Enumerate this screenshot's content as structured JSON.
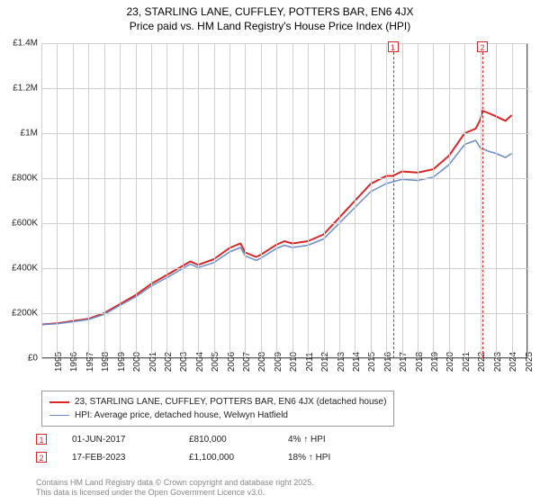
{
  "title_line1": "23, STARLING LANE, CUFFLEY, POTTERS BAR, EN6 4JX",
  "title_line2": "Price paid vs. HM Land Registry's House Price Index (HPI)",
  "chart": {
    "type": "line",
    "background_color": "#ffffff",
    "grid_color": "#cfcfcf",
    "border_color": "#5a5a5a",
    "xlim": [
      1995,
      2026
    ],
    "ylim": [
      0,
      1400000
    ],
    "ytick_step": 200000,
    "ytick_labels": [
      "£0",
      "£200K",
      "£400K",
      "£600K",
      "£800K",
      "£1M",
      "£1.2M",
      "£1.4M"
    ],
    "xtick_step": 1,
    "xtick_labels": [
      "1995",
      "1996",
      "1997",
      "1998",
      "1999",
      "2000",
      "2001",
      "2002",
      "2003",
      "2004",
      "2005",
      "2006",
      "2007",
      "2008",
      "2009",
      "2010",
      "2011",
      "2012",
      "2013",
      "2014",
      "2015",
      "2016",
      "2017",
      "2018",
      "2019",
      "2020",
      "2021",
      "2022",
      "2023",
      "2024",
      "2025",
      "2026"
    ],
    "series": [
      {
        "name": "23, STARLING LANE, CUFFLEY, POTTERS BAR, EN6 4JX (detached house)",
        "color": "#d62728",
        "line_width": 2,
        "points": [
          [
            1995,
            150000
          ],
          [
            1996,
            155000
          ],
          [
            1997,
            165000
          ],
          [
            1998,
            175000
          ],
          [
            1999,
            200000
          ],
          [
            2000,
            240000
          ],
          [
            2001,
            280000
          ],
          [
            2002,
            330000
          ],
          [
            2003,
            370000
          ],
          [
            2004,
            410000
          ],
          [
            2004.5,
            430000
          ],
          [
            2005,
            415000
          ],
          [
            2006,
            440000
          ],
          [
            2007,
            490000
          ],
          [
            2007.7,
            510000
          ],
          [
            2008,
            470000
          ],
          [
            2008.7,
            450000
          ],
          [
            2009,
            460000
          ],
          [
            2010,
            505000
          ],
          [
            2010.5,
            520000
          ],
          [
            2011,
            510000
          ],
          [
            2012,
            520000
          ],
          [
            2013,
            550000
          ],
          [
            2014,
            625000
          ],
          [
            2015,
            700000
          ],
          [
            2016,
            775000
          ],
          [
            2017,
            810000
          ],
          [
            2017.4,
            810000
          ],
          [
            2018,
            830000
          ],
          [
            2019,
            825000
          ],
          [
            2020,
            840000
          ],
          [
            2021,
            900000
          ],
          [
            2022,
            1000000
          ],
          [
            2022.7,
            1020000
          ],
          [
            2023,
            1060000
          ],
          [
            2023.13,
            1100000
          ],
          [
            2023.5,
            1090000
          ],
          [
            2024,
            1075000
          ],
          [
            2024.6,
            1055000
          ],
          [
            2025,
            1080000
          ]
        ]
      },
      {
        "name": "HPI: Average price, detached house, Welwyn Hatfield",
        "color": "#6b8cc4",
        "line_width": 1.5,
        "points": [
          [
            1995,
            150000
          ],
          [
            1996,
            153000
          ],
          [
            1997,
            162000
          ],
          [
            1998,
            172000
          ],
          [
            1999,
            195000
          ],
          [
            2000,
            235000
          ],
          [
            2001,
            272000
          ],
          [
            2002,
            320000
          ],
          [
            2003,
            358000
          ],
          [
            2004,
            398000
          ],
          [
            2004.5,
            418000
          ],
          [
            2005,
            403000
          ],
          [
            2006,
            425000
          ],
          [
            2007,
            472000
          ],
          [
            2007.7,
            492000
          ],
          [
            2008,
            455000
          ],
          [
            2008.7,
            435000
          ],
          [
            2009,
            445000
          ],
          [
            2010,
            488000
          ],
          [
            2010.5,
            502000
          ],
          [
            2011,
            492000
          ],
          [
            2012,
            502000
          ],
          [
            2013,
            530000
          ],
          [
            2014,
            600000
          ],
          [
            2015,
            670000
          ],
          [
            2016,
            740000
          ],
          [
            2017,
            776000
          ],
          [
            2018,
            795000
          ],
          [
            2019,
            790000
          ],
          [
            2020,
            805000
          ],
          [
            2021,
            860000
          ],
          [
            2022,
            950000
          ],
          [
            2022.7,
            968000
          ],
          [
            2023,
            935000
          ],
          [
            2023.5,
            920000
          ],
          [
            2024,
            910000
          ],
          [
            2024.6,
            892000
          ],
          [
            2025,
            910000
          ]
        ]
      }
    ],
    "markers": [
      {
        "n": "1",
        "x": 2017.42,
        "color": "#d62728"
      },
      {
        "n": "2",
        "x": 2023.13,
        "color": "#d62728"
      }
    ]
  },
  "legend": {
    "items": [
      {
        "color": "#d62728",
        "width": 2,
        "label": "23, STARLING LANE, CUFFLEY, POTTERS BAR, EN6 4JX (detached house)"
      },
      {
        "color": "#6b8cc4",
        "width": 1.5,
        "label": "HPI: Average price, detached house, Welwyn Hatfield"
      }
    ]
  },
  "sales": [
    {
      "n": "1",
      "color": "#d62728",
      "date": "01-JUN-2017",
      "price": "£810,000",
      "pct": "4% ↑ HPI"
    },
    {
      "n": "2",
      "color": "#d62728",
      "date": "17-FEB-2023",
      "price": "£1,100,000",
      "pct": "18% ↑ HPI"
    }
  ],
  "footer_line1": "Contains HM Land Registry data © Crown copyright and database right 2025.",
  "footer_line2": "This data is licensed under the Open Government Licence v3.0."
}
